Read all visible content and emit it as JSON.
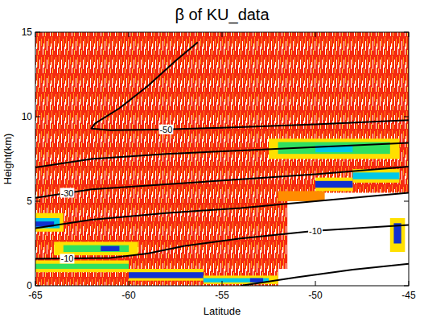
{
  "chart_data": {
    "type": "heatmap",
    "title": "β of KU_data",
    "x_label": "Latitude",
    "y_label": "Height(km)",
    "xlim": [
      -65,
      -45
    ],
    "ylim": [
      0,
      15
    ],
    "xticks": [
      -65,
      -60,
      -55,
      -50,
      -45
    ],
    "yticks": [
      0,
      5,
      10,
      15
    ],
    "cells": [
      {
        "x": [
          -65,
          -52
        ],
        "y": [
          0,
          15
        ],
        "value": 1
      },
      {
        "x": [
          -52,
          -45
        ],
        "y": [
          5.5,
          15
        ],
        "value": 1
      },
      {
        "x": [
          -52.5,
          -51.5
        ],
        "y": [
          1,
          5.5
        ],
        "value": 1
      },
      {
        "x": [
          -65,
          -63.5
        ],
        "y": [
          3.2,
          4.3
        ],
        "value": 3
      },
      {
        "x": [
          -65,
          -63.7
        ],
        "y": [
          3.4,
          4.0
        ],
        "value": 5
      },
      {
        "x": [
          -65,
          -64
        ],
        "y": [
          3.5,
          3.8
        ],
        "value": 6
      },
      {
        "x": [
          -64,
          -59.5
        ],
        "y": [
          1.8,
          2.6
        ],
        "value": 3
      },
      {
        "x": [
          -63.5,
          -60
        ],
        "y": [
          2.0,
          2.4
        ],
        "value": 4
      },
      {
        "x": [
          -61.5,
          -60.5
        ],
        "y": [
          2.05,
          2.35
        ],
        "value": 6
      },
      {
        "x": [
          -65,
          -60
        ],
        "y": [
          0.8,
          1.5
        ],
        "value": 3
      },
      {
        "x": [
          -65,
          -60
        ],
        "y": [
          1.0,
          1.3
        ],
        "value": 4
      },
      {
        "x": [
          -60,
          -56
        ],
        "y": [
          0.3,
          1.0
        ],
        "value": 3
      },
      {
        "x": [
          -60,
          -56
        ],
        "y": [
          0.45,
          0.8
        ],
        "value": 6
      },
      {
        "x": [
          -56,
          -52
        ],
        "y": [
          0.1,
          0.6
        ],
        "value": 3
      },
      {
        "x": [
          -56,
          -52.5
        ],
        "y": [
          0.2,
          0.45
        ],
        "value": 5
      },
      {
        "x": [
          -53.5,
          -52.8
        ],
        "y": [
          0.2,
          0.45
        ],
        "value": 6
      },
      {
        "x": [
          -52,
          -49.5
        ],
        "y": [
          5.0,
          5.6
        ],
        "value": 2
      },
      {
        "x": [
          -52.5,
          -45.5
        ],
        "y": [
          7.5,
          8.7
        ],
        "value": 3
      },
      {
        "x": [
          -52,
          -46
        ],
        "y": [
          7.8,
          8.5
        ],
        "value": 4
      },
      {
        "x": [
          -50,
          -48
        ],
        "y": [
          7.9,
          8.3
        ],
        "value": 5
      },
      {
        "x": [
          -50,
          -48
        ],
        "y": [
          5.6,
          6.4
        ],
        "value": 3
      },
      {
        "x": [
          -50,
          -48
        ],
        "y": [
          5.8,
          6.2
        ],
        "value": 6
      },
      {
        "x": [
          -48,
          -45.5
        ],
        "y": [
          6.1,
          6.9
        ],
        "value": 3
      },
      {
        "x": [
          -48,
          -45.5
        ],
        "y": [
          6.3,
          6.7
        ],
        "value": 5
      },
      {
        "x": [
          -46,
          -45.2
        ],
        "y": [
          2.0,
          4.0
        ],
        "value": 3
      },
      {
        "x": [
          -45.8,
          -45.4
        ],
        "y": [
          2.5,
          3.7
        ],
        "value": 6
      }
    ],
    "contours": [
      {
        "x": [
          -56.3,
          -57.5,
          -59,
          -60.5,
          -61.8,
          -62,
          -61,
          -58,
          -55,
          -50,
          -45
        ],
        "y": [
          14.4,
          13.3,
          11.8,
          10.5,
          9.6,
          9.3,
          9.2,
          9.25,
          9.35,
          9.55,
          9.8
        ],
        "labels": [
          {
            "x": -58,
            "y": 9.25,
            "text": "-50"
          }
        ]
      },
      {
        "x": [
          -65,
          -62,
          -58,
          -54,
          -50,
          -45
        ],
        "y": [
          7.0,
          7.5,
          7.8,
          8.0,
          8.2,
          8.45
        ]
      },
      {
        "x": [
          -65,
          -62,
          -58,
          -54,
          -50,
          -45
        ],
        "y": [
          5.2,
          5.7,
          6.0,
          6.3,
          6.6,
          7.05
        ],
        "labels": [
          {
            "x": -63.3,
            "y": 5.5,
            "text": "-30"
          }
        ]
      },
      {
        "x": [
          -65,
          -62,
          -58,
          -54,
          -50,
          -45
        ],
        "y": [
          3.4,
          3.9,
          4.3,
          4.6,
          5.0,
          5.5
        ]
      },
      {
        "x": [
          -65,
          -61,
          -59,
          -57,
          -54,
          -50,
          -45
        ],
        "y": [
          1.6,
          1.65,
          1.9,
          2.35,
          2.8,
          3.25,
          3.6
        ],
        "labels": [
          {
            "x": -63.3,
            "y": 1.6,
            "text": "-10"
          },
          {
            "x": -50,
            "y": 3.25,
            "text": "-10"
          }
        ]
      },
      {
        "x": [
          -54,
          -51,
          -48,
          -45
        ],
        "y": [
          0,
          0.5,
          0.95,
          1.3
        ]
      }
    ]
  }
}
